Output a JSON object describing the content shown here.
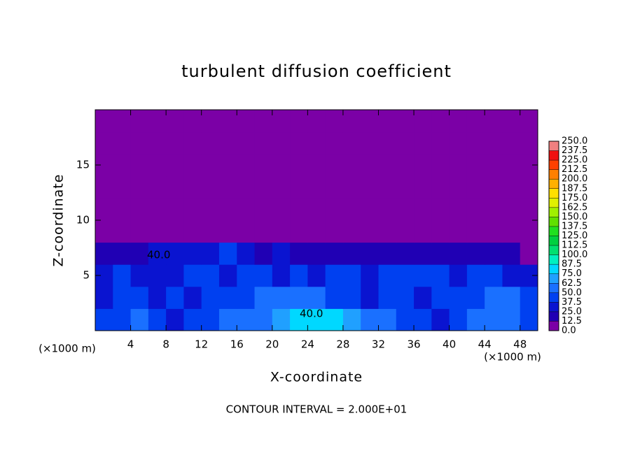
{
  "chart_data": {
    "type": "contour",
    "title": "turbulent diffusion coefficient",
    "xlabel": "X-coordinate",
    "ylabel": "Z-coordinate",
    "xunit": "(×1000 m)",
    "yunit": "(×1000 m)",
    "footnote": "CONTOUR INTERVAL = 2.000E+01",
    "xlim": [
      0,
      50
    ],
    "ylim": [
      0,
      20
    ],
    "xticks": [
      4,
      8,
      12,
      16,
      20,
      24,
      28,
      32,
      36,
      40,
      44,
      48
    ],
    "yticks": [
      5,
      10,
      15
    ],
    "z": [
      [
        40,
        45,
        50,
        40,
        35,
        40,
        45,
        50,
        55,
        60,
        70,
        80,
        85,
        80,
        70,
        60,
        50,
        45,
        40,
        35,
        40,
        50,
        60,
        55,
        45
      ],
      [
        35,
        40,
        45,
        30,
        40,
        35,
        40,
        45,
        45,
        50,
        50,
        55,
        50,
        45,
        40,
        35,
        40,
        45,
        35,
        40,
        40,
        45,
        55,
        50,
        40
      ],
      [
        30,
        40,
        35,
        25,
        35,
        40,
        40,
        35,
        40,
        40,
        35,
        40,
        35,
        40,
        45,
        35,
        40,
        40,
        40,
        45,
        35,
        40,
        40,
        35,
        30
      ],
      [
        15,
        20,
        20,
        30,
        30,
        25,
        35,
        40,
        30,
        20,
        25,
        20,
        15,
        15,
        15,
        20,
        15,
        20,
        15,
        20,
        15,
        15,
        20,
        15,
        10
      ],
      [
        0,
        0,
        0,
        0,
        0,
        0,
        5,
        5,
        5,
        5,
        0,
        0,
        0,
        0,
        0,
        0,
        0,
        0,
        0,
        0,
        0,
        0,
        0,
        0,
        0
      ],
      [
        0,
        0,
        0,
        0,
        0,
        0,
        0,
        0,
        0,
        0,
        0,
        0,
        0,
        0,
        0,
        0,
        0,
        0,
        0,
        0,
        0,
        0,
        0,
        0,
        0
      ],
      [
        0,
        0,
        0,
        0,
        0,
        0,
        0,
        0,
        0,
        0,
        0,
        0,
        0,
        0,
        0,
        0,
        0,
        0,
        0,
        0,
        0,
        0,
        0,
        0,
        0
      ],
      [
        0,
        0,
        0,
        0,
        0,
        0,
        0,
        0,
        0,
        0,
        0,
        0,
        0,
        0,
        0,
        0,
        0,
        0,
        0,
        0,
        0,
        0,
        0,
        0,
        0
      ],
      [
        0,
        0,
        0,
        0,
        0,
        0,
        0,
        0,
        0,
        0,
        0,
        0,
        0,
        0,
        0,
        0,
        0,
        0,
        0,
        0,
        0,
        0,
        0,
        0,
        0
      ],
      [
        0,
        0,
        0,
        0,
        0,
        0,
        0,
        0,
        0,
        0,
        0,
        0,
        0,
        0,
        0,
        0,
        0,
        0,
        0,
        0,
        0,
        0,
        0,
        0,
        0
      ]
    ],
    "contour_labels": [
      {
        "label": "40.0",
        "value": 40
      },
      {
        "label": "40.0",
        "value": 40
      }
    ],
    "colorbar_ticks": [
      {
        "value": 0,
        "label": "0.0"
      },
      {
        "value": 12.5,
        "label": "12.5"
      },
      {
        "value": 25,
        "label": "25.0"
      },
      {
        "value": 37.5,
        "label": "37.5"
      },
      {
        "value": 50,
        "label": "50.0"
      },
      {
        "value": 62.5,
        "label": "62.5"
      },
      {
        "value": 75,
        "label": "75.0"
      },
      {
        "value": 87.5,
        "label": "87.5"
      },
      {
        "value": 100,
        "label": "100.0"
      },
      {
        "value": 112.5,
        "label": "112.5"
      },
      {
        "value": 125,
        "label": "125.0"
      },
      {
        "value": 137.5,
        "label": "137.5"
      },
      {
        "value": 150,
        "label": "150.0"
      },
      {
        "value": 162.5,
        "label": "162.5"
      },
      {
        "value": 175,
        "label": "175.0"
      },
      {
        "value": 187.5,
        "label": "187.5"
      },
      {
        "value": 200,
        "label": "200.0"
      },
      {
        "value": 212.5,
        "label": "212.5"
      },
      {
        "value": 225,
        "label": "225.0"
      },
      {
        "value": 237.5,
        "label": "237.5"
      },
      {
        "value": 250,
        "label": "250.0"
      }
    ],
    "colors": [
      "#7b00a6",
      "#2000b4",
      "#0a14d0",
      "#0040f0",
      "#1a70ff",
      "#20a0ff",
      "#00d8ff",
      "#00f0c0",
      "#00e070",
      "#00d040",
      "#20e020",
      "#60e000",
      "#a0f000",
      "#e0f000",
      "#ffe000",
      "#ffb000",
      "#ff8000",
      "#ff4000",
      "#f01010",
      "#f08080"
    ]
  }
}
